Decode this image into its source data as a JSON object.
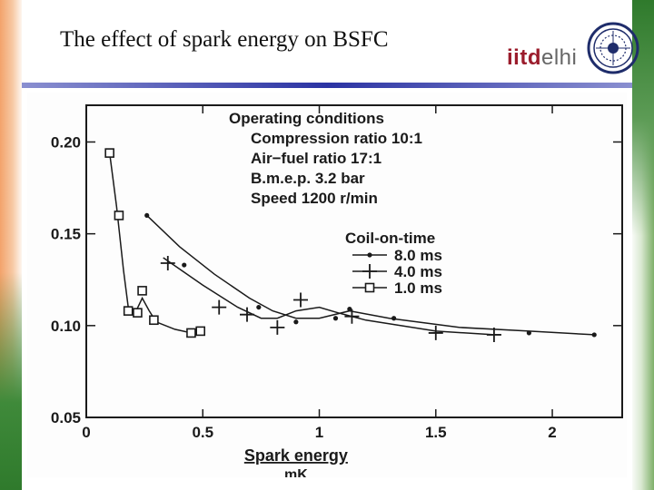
{
  "slide": {
    "title": "The effect of spark energy on BSFC",
    "logo_text_a": "iitd",
    "logo_text_b": "elhi",
    "emblem_icon": "iit-delhi-emblem-icon"
  },
  "chart_data": {
    "type": "line",
    "title": "",
    "xlabel": "Spark energy",
    "xunit": "mK",
    "ylabel": "",
    "xlim": [
      0,
      2.3
    ],
    "ylim": [
      0.05,
      0.22
    ],
    "x_ticks": [
      "0",
      "0.5",
      "1",
      "1.5",
      "2"
    ],
    "y_ticks": [
      "0.05",
      "0.10",
      "0.15",
      "0.20"
    ],
    "grid": false,
    "legend_position": "center-right",
    "legend_title": "Coil-on-time",
    "annotations": [
      "Operating conditions",
      "Compression ratio 10:1",
      "Air−fuel ratio 17:1",
      "B.m.e.p. 3.2 bar",
      "Speed 1200 r/min"
    ],
    "series": [
      {
        "name": "8.0 ms",
        "marker": "dot",
        "points": [
          [
            0.26,
            0.16
          ],
          [
            0.42,
            0.133
          ],
          [
            0.74,
            0.11
          ],
          [
            0.9,
            0.102
          ],
          [
            1.07,
            0.104
          ],
          [
            1.13,
            0.109
          ],
          [
            1.32,
            0.104
          ],
          [
            1.9,
            0.096
          ],
          [
            2.18,
            0.095
          ]
        ],
        "curve": [
          [
            0.26,
            0.16
          ],
          [
            0.4,
            0.143
          ],
          [
            0.55,
            0.128
          ],
          [
            0.7,
            0.115
          ],
          [
            0.8,
            0.108
          ],
          [
            0.9,
            0.104
          ],
          [
            1.0,
            0.104
          ],
          [
            1.13,
            0.108
          ],
          [
            1.3,
            0.104
          ],
          [
            1.6,
            0.099
          ],
          [
            1.9,
            0.097
          ],
          [
            2.18,
            0.095
          ]
        ]
      },
      {
        "name": "4.0 ms",
        "marker": "plus",
        "points": [
          [
            0.35,
            0.134
          ],
          [
            0.57,
            0.11
          ],
          [
            0.69,
            0.106
          ],
          [
            0.82,
            0.099
          ],
          [
            0.92,
            0.114
          ],
          [
            1.14,
            0.105
          ],
          [
            1.5,
            0.096
          ],
          [
            1.75,
            0.095
          ]
        ],
        "curve": [
          [
            0.33,
            0.137
          ],
          [
            0.5,
            0.122
          ],
          [
            0.65,
            0.11
          ],
          [
            0.75,
            0.104
          ],
          [
            0.82,
            0.104
          ],
          [
            0.9,
            0.108
          ],
          [
            1.0,
            0.11
          ],
          [
            1.08,
            0.107
          ],
          [
            1.2,
            0.103
          ],
          [
            1.5,
            0.097
          ],
          [
            1.75,
            0.095
          ]
        ]
      },
      {
        "name": "1.0 ms",
        "marker": "square",
        "points": [
          [
            0.1,
            0.194
          ],
          [
            0.14,
            0.16
          ],
          [
            0.18,
            0.108
          ],
          [
            0.22,
            0.107
          ],
          [
            0.24,
            0.119
          ],
          [
            0.29,
            0.103
          ],
          [
            0.45,
            0.096
          ],
          [
            0.49,
            0.097
          ]
        ],
        "curve": [
          [
            0.1,
            0.194
          ],
          [
            0.13,
            0.165
          ],
          [
            0.16,
            0.13
          ],
          [
            0.18,
            0.11
          ],
          [
            0.21,
            0.107
          ],
          [
            0.24,
            0.115
          ],
          [
            0.27,
            0.108
          ],
          [
            0.3,
            0.102
          ],
          [
            0.38,
            0.098
          ],
          [
            0.45,
            0.096
          ],
          [
            0.49,
            0.097
          ]
        ]
      }
    ]
  }
}
